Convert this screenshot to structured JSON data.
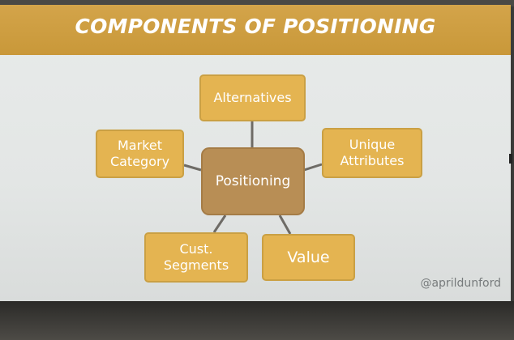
{
  "slide": {
    "title": "COMPONENTS OF POSITIONING",
    "handle": "@aprildunford"
  },
  "diagram": {
    "center": "Positioning",
    "components": [
      {
        "id": "alternatives",
        "label": "Alternatives"
      },
      {
        "id": "unique-attributes",
        "label": "Unique\nAttributes"
      },
      {
        "id": "value",
        "label": "Value"
      },
      {
        "id": "customer-segments",
        "label": "Cust.\nSegments"
      },
      {
        "id": "market-category",
        "label": "Market\nCategory"
      }
    ]
  },
  "colors": {
    "header": "#cc9c3e",
    "component_fill": "#e4b451",
    "center_fill": "#b88e55",
    "connector": "#6e6b66",
    "slide_background": "#e6e9e8"
  }
}
